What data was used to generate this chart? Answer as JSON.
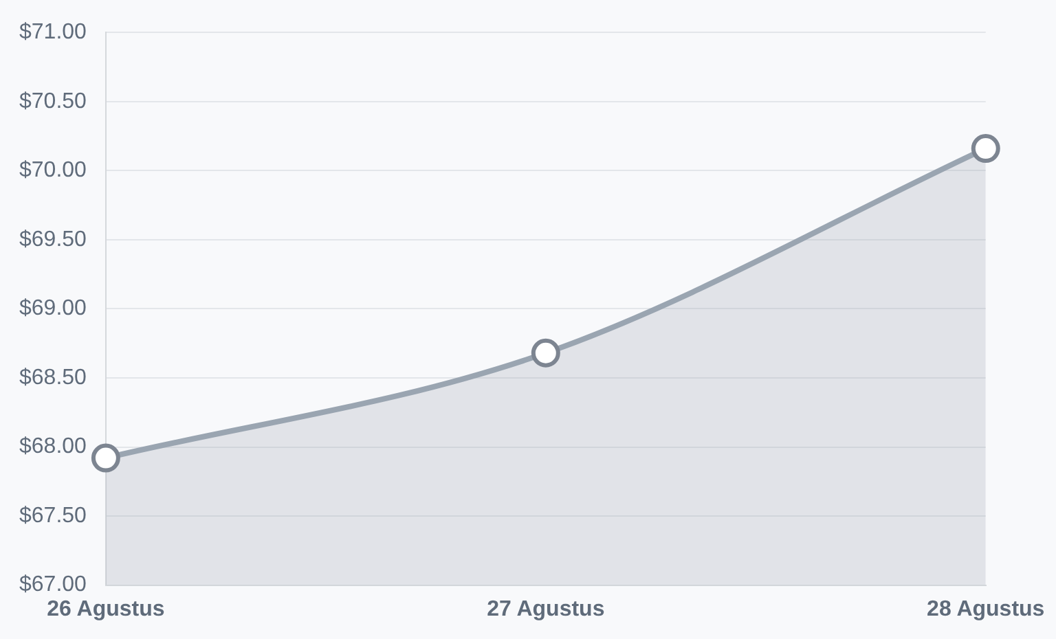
{
  "chart_data": {
    "type": "area",
    "categories": [
      "26 Agustus",
      "27 Agustus",
      "28 Agustus"
    ],
    "series": [
      {
        "color": "#9aa5b1",
        "values": [
          67.92,
          68.68,
          70.16
        ]
      }
    ],
    "ylim": [
      67,
      71
    ],
    "yticks": [
      {
        "value": 67,
        "label": "$67.00"
      },
      {
        "value": 67.5,
        "label": "$67.50"
      },
      {
        "value": 68,
        "label": "$68.00"
      },
      {
        "value": 68.5,
        "label": "$68.50"
      },
      {
        "value": 69,
        "label": "$69.00"
      },
      {
        "value": 69.5,
        "label": "$69.50"
      },
      {
        "value": 70,
        "label": "$70.00"
      },
      {
        "value": 70.5,
        "label": "$70.50"
      },
      {
        "value": 71,
        "label": "$71.00"
      }
    ],
    "grid": "y",
    "marker": "circle",
    "legend": false
  }
}
